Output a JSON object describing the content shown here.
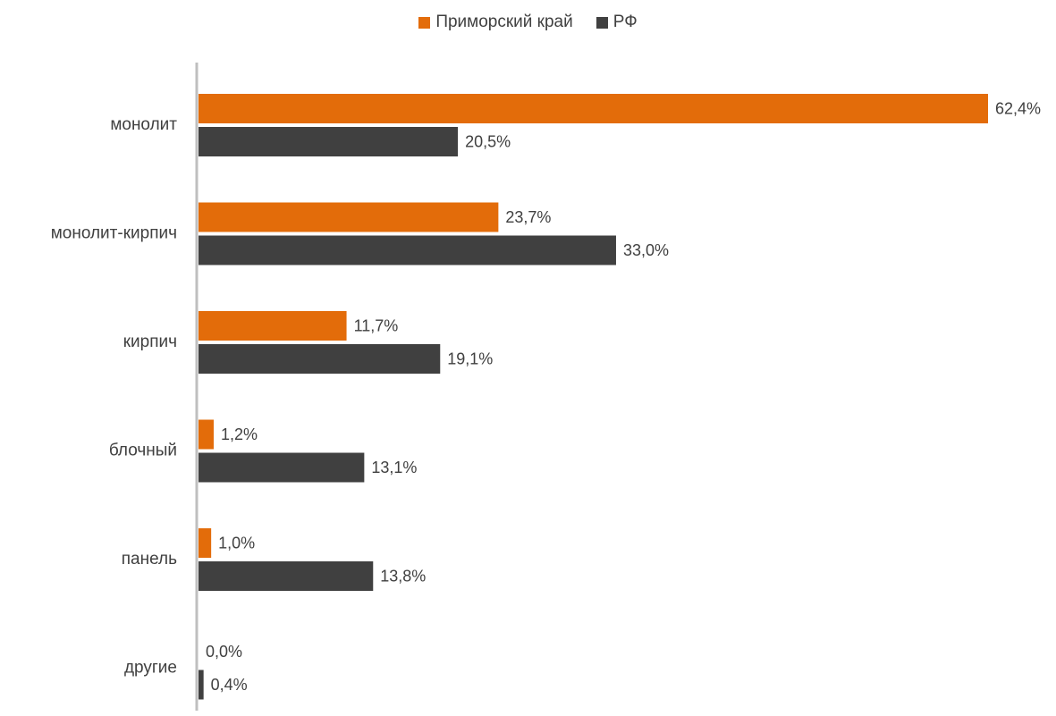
{
  "chart_data": {
    "type": "bar",
    "orientation": "horizontal",
    "categories": [
      "монолит",
      "монолит-кирпич",
      "кирпич",
      "блочный",
      "панель",
      "другие"
    ],
    "series": [
      {
        "name": "Приморский край",
        "color": "#E36C0A",
        "values": [
          62.4,
          23.7,
          11.7,
          1.2,
          1.0,
          0.0
        ],
        "labels": [
          "62,4%",
          "23,7%",
          "11,7%",
          "1,2%",
          "1,0%",
          "0,0%"
        ]
      },
      {
        "name": "РФ",
        "color": "#404040",
        "values": [
          20.5,
          33.0,
          19.1,
          13.1,
          13.8,
          0.4
        ],
        "labels": [
          "20,5%",
          "33,0%",
          "19,1%",
          "13,1%",
          "13,8%",
          "0,4%"
        ]
      }
    ],
    "xlim": [
      0,
      62.4
    ],
    "legend_position": "top-center",
    "grid": false,
    "title": "",
    "xlabel": "",
    "ylabel": ""
  }
}
